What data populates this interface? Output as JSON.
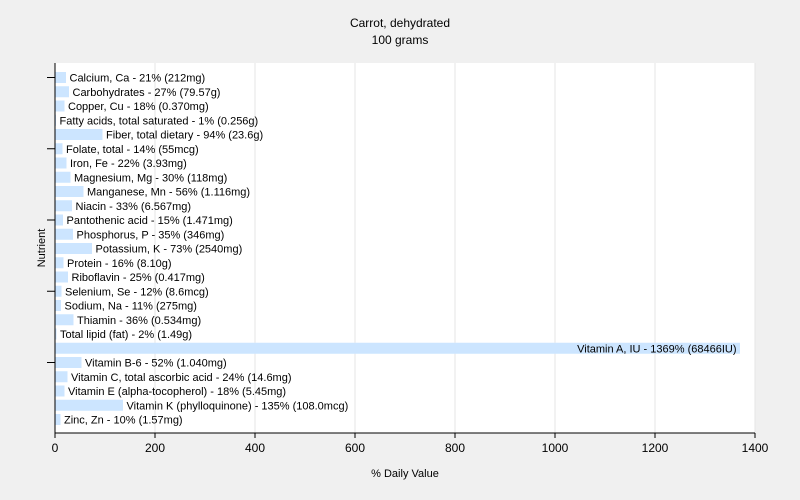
{
  "chart_data": {
    "type": "bar",
    "orientation": "horizontal",
    "title": "Carrot, dehydrated",
    "subtitle": "100 grams",
    "xlabel": "% Daily Value",
    "ylabel": "Nutrient",
    "xlim": [
      0,
      1400
    ],
    "xticks": [
      0,
      200,
      400,
      600,
      800,
      1000,
      1200,
      1400
    ],
    "grid": "vertical",
    "bar_color": "#cce5ff",
    "categories": [
      "Calcium, Ca - 21% (212mg)",
      "Carbohydrates - 27% (79.57g)",
      "Copper, Cu - 18% (0.370mg)",
      "Fatty acids, total saturated - 1% (0.256g)",
      "Fiber, total dietary - 94% (23.6g)",
      "Folate, total - 14% (55mcg)",
      "Iron, Fe - 22% (3.93mg)",
      "Magnesium, Mg - 30% (118mg)",
      "Manganese, Mn - 56% (1.116mg)",
      "Niacin - 33% (6.567mg)",
      "Pantothenic acid - 15% (1.471mg)",
      "Phosphorus, P - 35% (346mg)",
      "Potassium, K - 73% (2540mg)",
      "Protein - 16% (8.10g)",
      "Riboflavin - 25% (0.417mg)",
      "Selenium, Se - 12% (8.6mcg)",
      "Sodium, Na - 11% (275mg)",
      "Thiamin - 36% (0.534mg)",
      "Total lipid (fat) - 2% (1.49g)",
      "Vitamin A, IU - 1369% (68466IU)",
      "Vitamin B-6 - 52% (1.040mg)",
      "Vitamin C, total ascorbic acid - 24% (14.6mg)",
      "Vitamin E (alpha-tocopherol) - 18% (5.45mg)",
      "Vitamin K (phylloquinone) - 135% (108.0mcg)",
      "Zinc, Zn - 10% (1.57mg)"
    ],
    "values": [
      21,
      27,
      18,
      1,
      94,
      14,
      22,
      30,
      56,
      33,
      15,
      35,
      73,
      16,
      25,
      12,
      11,
      36,
      2,
      1369,
      52,
      24,
      18,
      135,
      10
    ]
  }
}
